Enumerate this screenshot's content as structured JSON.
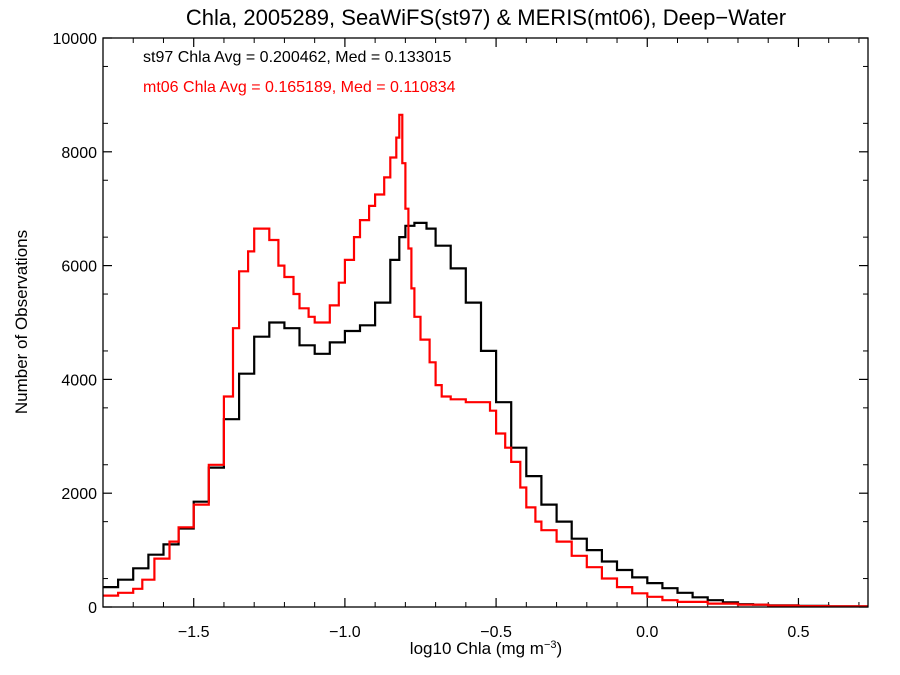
{
  "chart_data": {
    "type": "line",
    "title": "Chla, 2005289, SeaWiFS(st97) & MERIS(mt06), Deep−Water",
    "xlabel_prefix": "log10 Chla (mg m",
    "xlabel_sup": "−3",
    "xlabel_suffix": ")",
    "ylabel": "Number of Observations",
    "xlim": [
      -1.8,
      0.73
    ],
    "ylim": [
      0,
      10000
    ],
    "xticks": [
      -1.5,
      -1.0,
      -0.5,
      0.0,
      0.5
    ],
    "xtick_labels": [
      "−1.5",
      "−1.0",
      "−0.5",
      "0.0",
      "0.5"
    ],
    "yticks": [
      0,
      2000,
      4000,
      6000,
      8000,
      10000
    ],
    "ytick_labels": [
      "0",
      "2000",
      "4000",
      "6000",
      "8000",
      "10000"
    ],
    "grid": false,
    "annotations": [
      {
        "text": "st97 Chla Avg = 0.200462, Med = 0.133015",
        "color": "#000000"
      },
      {
        "text": "mt06 Chla Avg = 0.165189, Med = 0.110834",
        "color": "#ff0000"
      }
    ],
    "series": [
      {
        "color": "#000000",
        "style": "step",
        "points": [
          [
            -1.8,
            350
          ],
          [
            -1.75,
            480
          ],
          [
            -1.7,
            680
          ],
          [
            -1.65,
            920
          ],
          [
            -1.6,
            1100
          ],
          [
            -1.55,
            1380
          ],
          [
            -1.5,
            1850
          ],
          [
            -1.45,
            2450
          ],
          [
            -1.4,
            3300
          ],
          [
            -1.35,
            4100
          ],
          [
            -1.3,
            4750
          ],
          [
            -1.25,
            5000
          ],
          [
            -1.2,
            4900
          ],
          [
            -1.15,
            4600
          ],
          [
            -1.1,
            4450
          ],
          [
            -1.05,
            4650
          ],
          [
            -1.0,
            4850
          ],
          [
            -0.95,
            4950
          ],
          [
            -0.9,
            5350
          ],
          [
            -0.85,
            6100
          ],
          [
            -0.82,
            6500
          ],
          [
            -0.8,
            6700
          ],
          [
            -0.77,
            6750
          ],
          [
            -0.73,
            6650
          ],
          [
            -0.7,
            6350
          ],
          [
            -0.65,
            5950
          ],
          [
            -0.6,
            5350
          ],
          [
            -0.55,
            4500
          ],
          [
            -0.5,
            3600
          ],
          [
            -0.45,
            2800
          ],
          [
            -0.4,
            2300
          ],
          [
            -0.35,
            1800
          ],
          [
            -0.3,
            1500
          ],
          [
            -0.25,
            1200
          ],
          [
            -0.2,
            1000
          ],
          [
            -0.15,
            800
          ],
          [
            -0.1,
            650
          ],
          [
            -0.05,
            520
          ],
          [
            0.0,
            420
          ],
          [
            0.05,
            330
          ],
          [
            0.1,
            250
          ],
          [
            0.15,
            170
          ],
          [
            0.2,
            120
          ],
          [
            0.25,
            80
          ],
          [
            0.3,
            50
          ],
          [
            0.35,
            40
          ],
          [
            0.4,
            30
          ],
          [
            0.5,
            20
          ],
          [
            0.6,
            12
          ],
          [
            0.73,
            8
          ]
        ]
      },
      {
        "color": "#ff0000",
        "style": "step",
        "points": [
          [
            -1.8,
            200
          ],
          [
            -1.75,
            250
          ],
          [
            -1.7,
            320
          ],
          [
            -1.67,
            480
          ],
          [
            -1.63,
            850
          ],
          [
            -1.58,
            1150
          ],
          [
            -1.55,
            1400
          ],
          [
            -1.5,
            1800
          ],
          [
            -1.45,
            2500
          ],
          [
            -1.4,
            3700
          ],
          [
            -1.37,
            4900
          ],
          [
            -1.35,
            5900
          ],
          [
            -1.32,
            6250
          ],
          [
            -1.3,
            6650
          ],
          [
            -1.27,
            6650
          ],
          [
            -1.25,
            6450
          ],
          [
            -1.22,
            6000
          ],
          [
            -1.2,
            5800
          ],
          [
            -1.17,
            5500
          ],
          [
            -1.15,
            5250
          ],
          [
            -1.12,
            5100
          ],
          [
            -1.1,
            5000
          ],
          [
            -1.07,
            5000
          ],
          [
            -1.05,
            5300
          ],
          [
            -1.02,
            5700
          ],
          [
            -1.0,
            6100
          ],
          [
            -0.97,
            6500
          ],
          [
            -0.95,
            6800
          ],
          [
            -0.92,
            7050
          ],
          [
            -0.9,
            7250
          ],
          [
            -0.87,
            7550
          ],
          [
            -0.85,
            7900
          ],
          [
            -0.83,
            8250
          ],
          [
            -0.82,
            8650
          ],
          [
            -0.81,
            7800
          ],
          [
            -0.8,
            7000
          ],
          [
            -0.79,
            6300
          ],
          [
            -0.78,
            5600
          ],
          [
            -0.77,
            5100
          ],
          [
            -0.75,
            4700
          ],
          [
            -0.72,
            4300
          ],
          [
            -0.7,
            3900
          ],
          [
            -0.68,
            3700
          ],
          [
            -0.65,
            3650
          ],
          [
            -0.6,
            3600
          ],
          [
            -0.55,
            3600
          ],
          [
            -0.52,
            3450
          ],
          [
            -0.5,
            3050
          ],
          [
            -0.47,
            2800
          ],
          [
            -0.45,
            2550
          ],
          [
            -0.42,
            2100
          ],
          [
            -0.4,
            1750
          ],
          [
            -0.37,
            1500
          ],
          [
            -0.35,
            1350
          ],
          [
            -0.3,
            1150
          ],
          [
            -0.25,
            900
          ],
          [
            -0.2,
            700
          ],
          [
            -0.15,
            500
          ],
          [
            -0.1,
            350
          ],
          [
            -0.05,
            240
          ],
          [
            0.0,
            180
          ],
          [
            0.05,
            120
          ],
          [
            0.1,
            90
          ],
          [
            0.2,
            60
          ],
          [
            0.3,
            40
          ],
          [
            0.4,
            25
          ],
          [
            0.5,
            15
          ],
          [
            0.6,
            10
          ],
          [
            0.73,
            5
          ]
        ]
      }
    ]
  }
}
